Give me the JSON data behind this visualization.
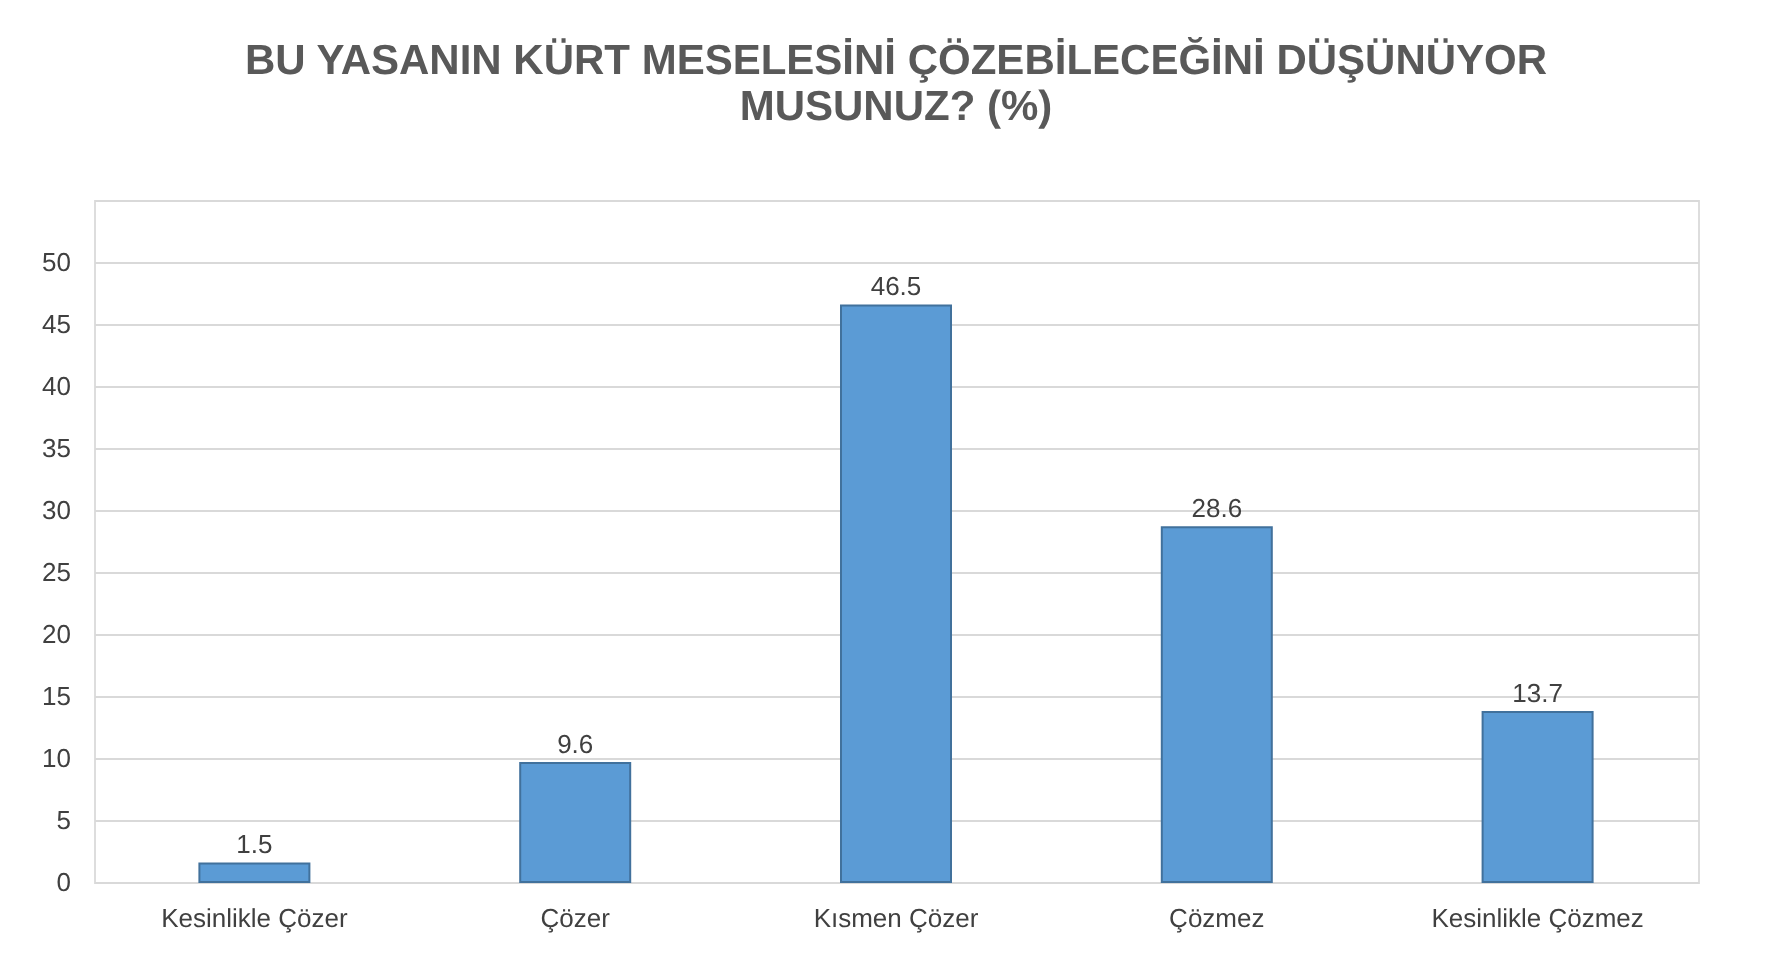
{
  "chart_data": {
    "type": "bar",
    "title": "BU YASANIN KÜRT MESELESİNİ ÇÖZEBİLECEĞİNİ DÜŞÜNÜYOR MUSUNUZ? (%)",
    "categories": [
      "Kesinlikle Çözer",
      "Çözer",
      "Kısmen Çözer",
      "Çözmez",
      "Kesinlikle Çözmez"
    ],
    "values": [
      1.5,
      9.6,
      46.5,
      28.6,
      13.7
    ],
    "color": "#5b9bd5",
    "ylim": [
      0,
      55
    ],
    "yticks": [
      0,
      5,
      10,
      15,
      20,
      25,
      30,
      35,
      40,
      45,
      50,
      {
        "value": 55,
        "label": null
      }
    ],
    "grid": "y",
    "data_labels": true
  }
}
